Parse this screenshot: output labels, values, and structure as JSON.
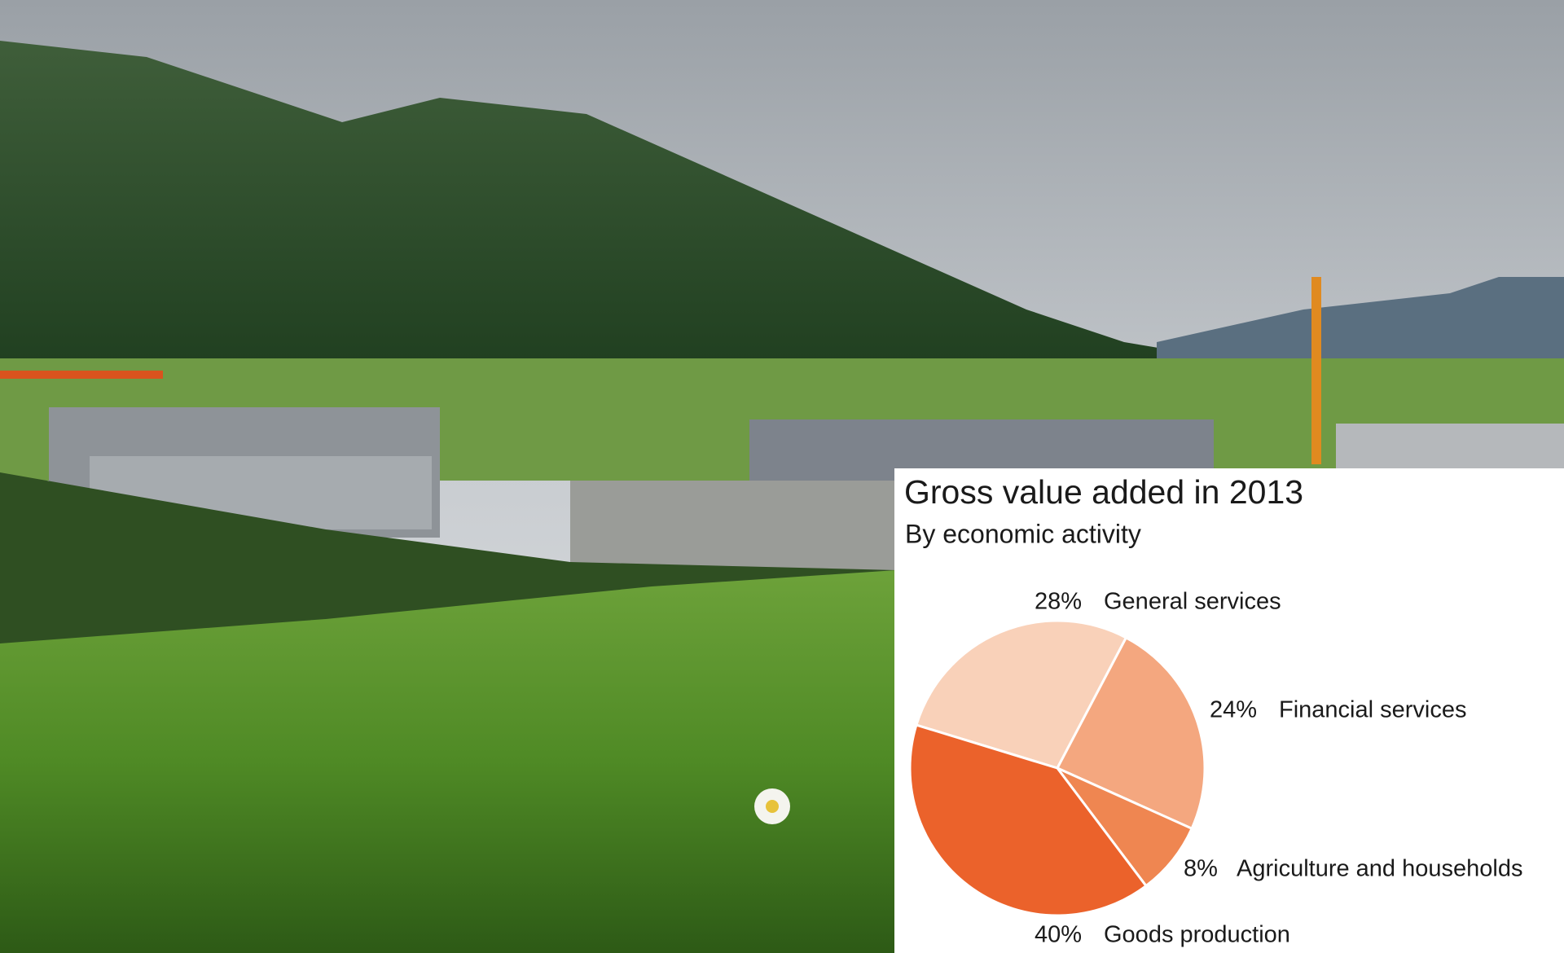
{
  "chart_data": {
    "type": "pie",
    "title": "Gross value added in 2013",
    "subtitle": "By economic activity",
    "categories": [
      "General services",
      "Financial services",
      "Agriculture and households",
      "Goods production"
    ],
    "values": [
      28,
      24,
      8,
      40
    ],
    "value_labels": [
      "28%",
      "24%",
      "8%",
      "40%"
    ],
    "colors": [
      "#f9d1b9",
      "#f4a77f",
      "#ef8651",
      "#eb622b"
    ]
  }
}
